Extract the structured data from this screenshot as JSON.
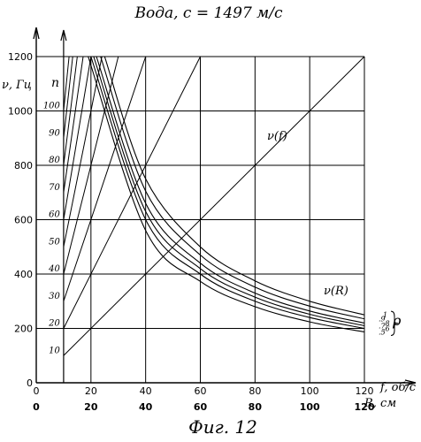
{
  "chart_data": {
    "type": "line",
    "title": "Вода,   c = 1497 м/с",
    "caption": "Фиг. 12",
    "ylabel": "ν, Гц",
    "n_axis_label": "n",
    "xlabel_f": "f, об/с",
    "xlabel_R": "R, см",
    "ylim": [
      0,
      1200
    ],
    "xlim_f": [
      0,
      120
    ],
    "xlim_R": [
      0,
      120
    ],
    "grid": true,
    "y_ticks": [
      "0",
      "200",
      "400",
      "600",
      "800",
      "1000",
      "1200"
    ],
    "f_ticks": [
      "0",
      "20",
      "40",
      "60",
      "80",
      "100",
      "120"
    ],
    "R_ticks": [
      "0",
      "20",
      "40",
      "60",
      "80",
      "100",
      "120"
    ],
    "n_ticks": [
      "10",
      "20",
      "30",
      "40",
      "50",
      "60",
      "70",
      "80",
      "90",
      "100"
    ],
    "v_f_lines": {
      "label": "ν(f)",
      "note": "ν = n·f, drawn for n = 10 … 100",
      "n_values": [
        10,
        20,
        30,
        40,
        50,
        60,
        70,
        80,
        90,
        100
      ],
      "f_start": 10
    },
    "v_R_curves": {
      "label": "ν(R)",
      "rho_label": "ρ",
      "rho_tick_labels": [
        ".5",
        ".6",
        ".7",
        ".8",
        ".9",
        "1"
      ],
      "series": [
        {
          "rho": ".5",
          "points": [
            [
              19,
              1200
            ],
            [
              40,
              560
            ],
            [
              60,
              373
            ],
            [
              80,
              280
            ],
            [
              100,
              224
            ],
            [
              120,
              187
            ]
          ]
        },
        {
          "rho": ".6",
          "points": [
            [
              20,
              1200
            ],
            [
              40,
              600
            ],
            [
              60,
              400
            ],
            [
              80,
              300
            ],
            [
              100,
              240
            ],
            [
              120,
              200
            ]
          ]
        },
        {
          "rho": ".7",
          "points": [
            [
              21,
              1200
            ],
            [
              40,
              630
            ],
            [
              60,
              420
            ],
            [
              80,
              315
            ],
            [
              100,
              252
            ],
            [
              120,
              210
            ]
          ]
        },
        {
          "rho": ".8",
          "points": [
            [
              22,
              1200
            ],
            [
              40,
              660
            ],
            [
              60,
              440
            ],
            [
              80,
              330
            ],
            [
              100,
              264
            ],
            [
              120,
              220
            ]
          ]
        },
        {
          "rho": ".9",
          "points": [
            [
              23.5,
              1200
            ],
            [
              40,
              705
            ],
            [
              60,
              470
            ],
            [
              80,
              352
            ],
            [
              100,
              282
            ],
            [
              120,
              235
            ]
          ]
        },
        {
          "rho": "1",
          "points": [
            [
              25,
              1200
            ],
            [
              40,
              750
            ],
            [
              60,
              500
            ],
            [
              80,
              375
            ],
            [
              100,
              300
            ],
            [
              120,
              250
            ]
          ]
        }
      ]
    }
  }
}
